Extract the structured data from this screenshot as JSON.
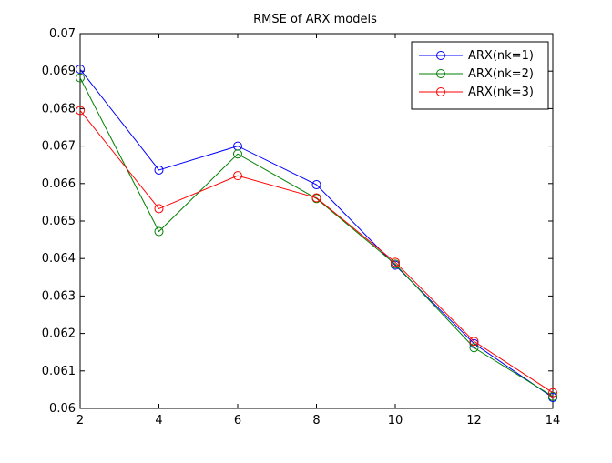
{
  "chart_data": {
    "type": "line",
    "title": "RMSE of ARX models",
    "xlabel": "",
    "ylabel": "",
    "x": [
      2,
      4,
      6,
      8,
      10,
      12,
      14
    ],
    "xlim": [
      2,
      14
    ],
    "ylim": [
      0.06,
      0.07
    ],
    "xticks": [
      "2",
      "4",
      "6",
      "8",
      "10",
      "12",
      "14"
    ],
    "yticks": [
      "0.06",
      "0.061",
      "0.062",
      "0.063",
      "0.064",
      "0.065",
      "0.066",
      "0.067",
      "0.068",
      "0.069",
      "0.07"
    ],
    "grid": false,
    "legend_position": "top-right",
    "marker": "circle",
    "series": [
      {
        "name": "ARX(nk=1)",
        "color": "#0000ff",
        "values": [
          0.06905,
          0.06636,
          0.067,
          0.06597,
          0.06382,
          0.06173,
          0.06029
        ]
      },
      {
        "name": "ARX(nk=2)",
        "color": "#008000",
        "values": [
          0.06882,
          0.06472,
          0.06679,
          0.0656,
          0.06385,
          0.06162,
          0.06032
        ]
      },
      {
        "name": "ARX(nk=3)",
        "color": "#ff0000",
        "values": [
          0.06795,
          0.06533,
          0.06621,
          0.06562,
          0.0639,
          0.06179,
          0.06042
        ]
      }
    ]
  }
}
